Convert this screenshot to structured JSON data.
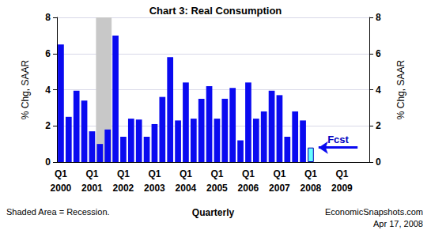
{
  "chart_data": {
    "type": "bar",
    "title": "Chart 3: Real Consumption",
    "xlabel": "Quarterly",
    "ylabel": "% Chg, SAAR",
    "y2label": "% Chg, SAAR",
    "categories": [
      "Q1\n2000",
      null,
      null,
      null,
      "Q1\n2001",
      null,
      null,
      null,
      "Q1\n2002",
      null,
      null,
      null,
      "Q1\n2003",
      null,
      null,
      null,
      "Q1\n2004",
      null,
      null,
      null,
      "Q1\n2005",
      null,
      null,
      null,
      "Q1\n2006",
      null,
      null,
      null,
      "Q1\n2007",
      null,
      null,
      null,
      "Q1\n2008",
      null,
      null,
      null,
      "Q1\n2009",
      null,
      null,
      null
    ],
    "values": [
      6.5,
      2.5,
      3.95,
      3.4,
      1.7,
      1.0,
      1.8,
      7.0,
      1.4,
      2.4,
      2.35,
      1.4,
      2.1,
      3.6,
      5.8,
      2.3,
      4.4,
      2.4,
      3.5,
      4.2,
      2.4,
      3.5,
      4.1,
      1.2,
      4.4,
      2.4,
      2.8,
      3.95,
      3.7,
      1.4,
      2.8,
      2.3,
      0.8,
      null,
      null,
      null,
      null,
      null,
      null,
      null
    ],
    "colors": [
      "#0a0af0",
      "#0a0af0",
      "#0a0af0",
      "#0a0af0",
      "#0a0af0",
      "#0a0af0",
      "#0a0af0",
      "#0a0af0",
      "#0a0af0",
      "#0a0af0",
      "#0a0af0",
      "#0a0af0",
      "#0a0af0",
      "#0a0af0",
      "#0a0af0",
      "#0a0af0",
      "#0a0af0",
      "#0a0af0",
      "#0a0af0",
      "#0a0af0",
      "#0a0af0",
      "#0a0af0",
      "#0a0af0",
      "#0a0af0",
      "#0a0af0",
      "#0a0af0",
      "#0a0af0",
      "#0a0af0",
      "#0a0af0",
      "#0a0af0",
      "#0a0af0",
      "#0a0af0",
      "#66ffff",
      "#0a0af0",
      "#0a0af0",
      "#0a0af0",
      "#0a0af0",
      "#0a0af0",
      "#0a0af0",
      "#0a0af0"
    ],
    "ylim": [
      0,
      8
    ],
    "yticks": [
      0,
      2,
      4,
      6,
      8
    ],
    "y2lim": [
      0,
      8
    ],
    "y2ticks": [
      0,
      2,
      4,
      6,
      8
    ],
    "grid": true,
    "shaded": {
      "label": "Shaded Area = Recession.",
      "from": 5,
      "to": 6
    },
    "annotations": [
      {
        "text": "Fcst",
        "index": 32
      }
    ],
    "notes": [
      "EconomicSnapshots.com",
      "Apr 17, 2008"
    ]
  }
}
